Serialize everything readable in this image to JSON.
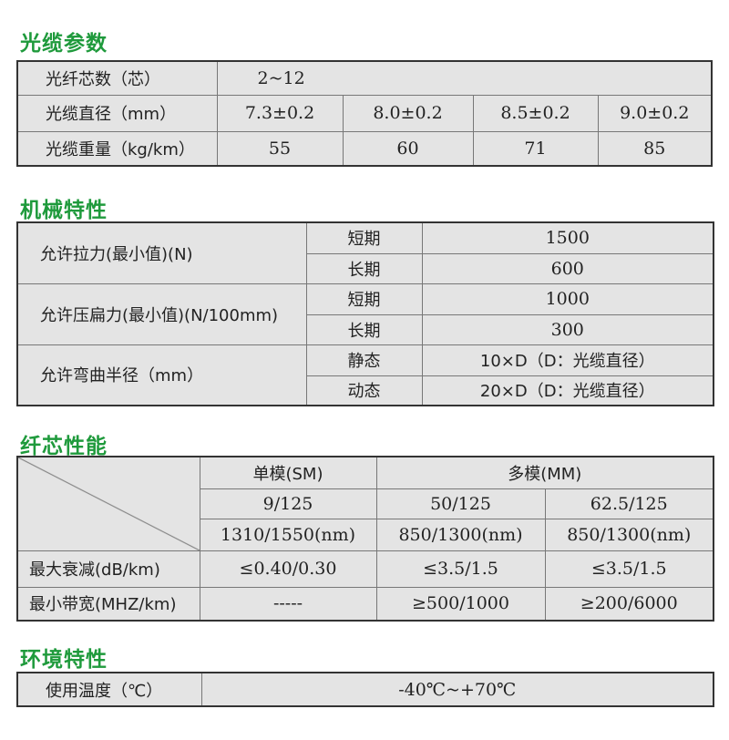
{
  "sections": {
    "cable": {
      "title": "光缆参数",
      "rows": [
        {
          "label": "光纤芯数（芯）",
          "value": "2~12"
        },
        {
          "label": "光缆直径（mm）",
          "values": [
            "7.3±0.2",
            "8.0±0.2",
            "8.5±0.2",
            "9.0±0.2"
          ]
        },
        {
          "label": "光缆重量（kg/km）",
          "values": [
            "55",
            "60",
            "71",
            "85"
          ]
        }
      ]
    },
    "mech": {
      "title": "机械特性",
      "groups": [
        {
          "label": "允许拉力(最小值)(N)",
          "rows": [
            {
              "k": "短期",
              "v": "1500"
            },
            {
              "k": "长期",
              "v": "600"
            }
          ]
        },
        {
          "label": "允许压扁力(最小值)(N/100mm)",
          "rows": [
            {
              "k": "短期",
              "v": "1000"
            },
            {
              "k": "长期",
              "v": "300"
            }
          ]
        },
        {
          "label": "允许弯曲半径（mm）",
          "rows": [
            {
              "k": "静态",
              "v": "10×D（D：光缆直径）"
            },
            {
              "k": "动态",
              "v": "20×D（D：光缆直径）"
            }
          ]
        }
      ]
    },
    "fiber": {
      "title": "纤芯性能",
      "sm": "单模(SM)",
      "mm": "多模(MM)",
      "types": [
        "9/125",
        "50/125",
        "62.5/125"
      ],
      "wavelengths": [
        "1310/1550(nm)",
        "850/1300(nm)",
        "850/1300(nm)"
      ],
      "rows": [
        {
          "label": "最大衰减(dB/km)",
          "values": [
            "≤0.40/0.30",
            "≤3.5/1.5",
            "≤3.5/1.5"
          ]
        },
        {
          "label": "最小带宽(MHZ/km)",
          "values": [
            "-----",
            "≥500/1000",
            "≥200/6000"
          ]
        }
      ]
    },
    "env": {
      "title": "环境特性",
      "label": "使用温度（℃）",
      "value": "-40℃~+70℃"
    }
  }
}
